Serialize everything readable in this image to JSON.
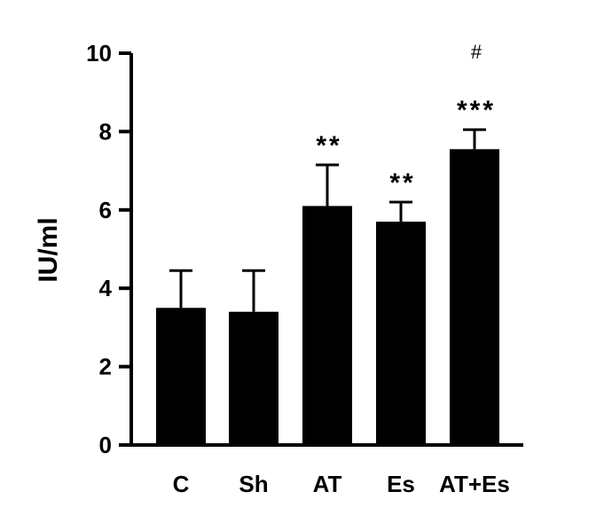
{
  "chart_data": {
    "type": "bar",
    "categories": [
      "C",
      "Sh",
      "AT",
      "Es",
      "AT+Es"
    ],
    "values": [
      3.5,
      3.4,
      6.1,
      5.7,
      7.55
    ],
    "error_upper": [
      4.45,
      4.45,
      7.15,
      6.2,
      8.05
    ],
    "annotations": [
      "",
      "",
      "**",
      "**",
      "***"
    ],
    "extra_annotations": [
      "",
      "",
      "",
      "",
      "#"
    ],
    "ylabel": "IU/ml",
    "xlabel": "",
    "ylim": [
      0,
      10
    ],
    "yticks": [
      0,
      2,
      4,
      6,
      8,
      10
    ],
    "grid": false,
    "bar_color": "#000000"
  }
}
